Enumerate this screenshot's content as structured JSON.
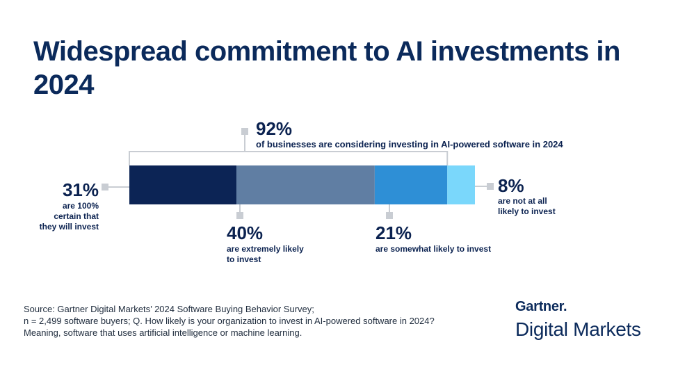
{
  "title": "Widespread commitment to AI investments in 2024",
  "chart_data": {
    "type": "bar",
    "orientation": "horizontal-stacked",
    "categories": [
      "are 100% certain that they will invest",
      "are extremely likely to invest",
      "are somewhat likely to invest",
      "are not at all likely to invest"
    ],
    "values": [
      31,
      40,
      21,
      8
    ],
    "unit": "%",
    "colors": [
      "#0c2455",
      "#607ea3",
      "#2e8fd6",
      "#7ad7fb"
    ],
    "segment_labels": [
      {
        "value": "31%",
        "lines": [
          "are 100%",
          "certain that",
          "they will invest"
        ]
      },
      {
        "value": "40%",
        "lines": [
          "are extremely likely",
          "to invest"
        ]
      },
      {
        "value": "21%",
        "lines": [
          "are somewhat likely to invest"
        ]
      },
      {
        "value": "8%",
        "lines": [
          "are not at all",
          "likely to invest"
        ]
      }
    ],
    "bracket": {
      "value": "92%",
      "text": "of businesses are considering investing in AI-powered software in 2024",
      "covers_segments": [
        0,
        1,
        2
      ]
    }
  },
  "source": {
    "lines": [
      "Source: Gartner Digital Markets’ 2024 Software Buying Behavior Survey;",
      "n = 2,499 software buyers; Q. How likely is your organization to invest in AI-powered software in 2024?",
      "Meaning, software that uses artificial intelligence or machine learning."
    ]
  },
  "brand": {
    "top": "Gartner.",
    "bottom": "Digital Markets"
  }
}
